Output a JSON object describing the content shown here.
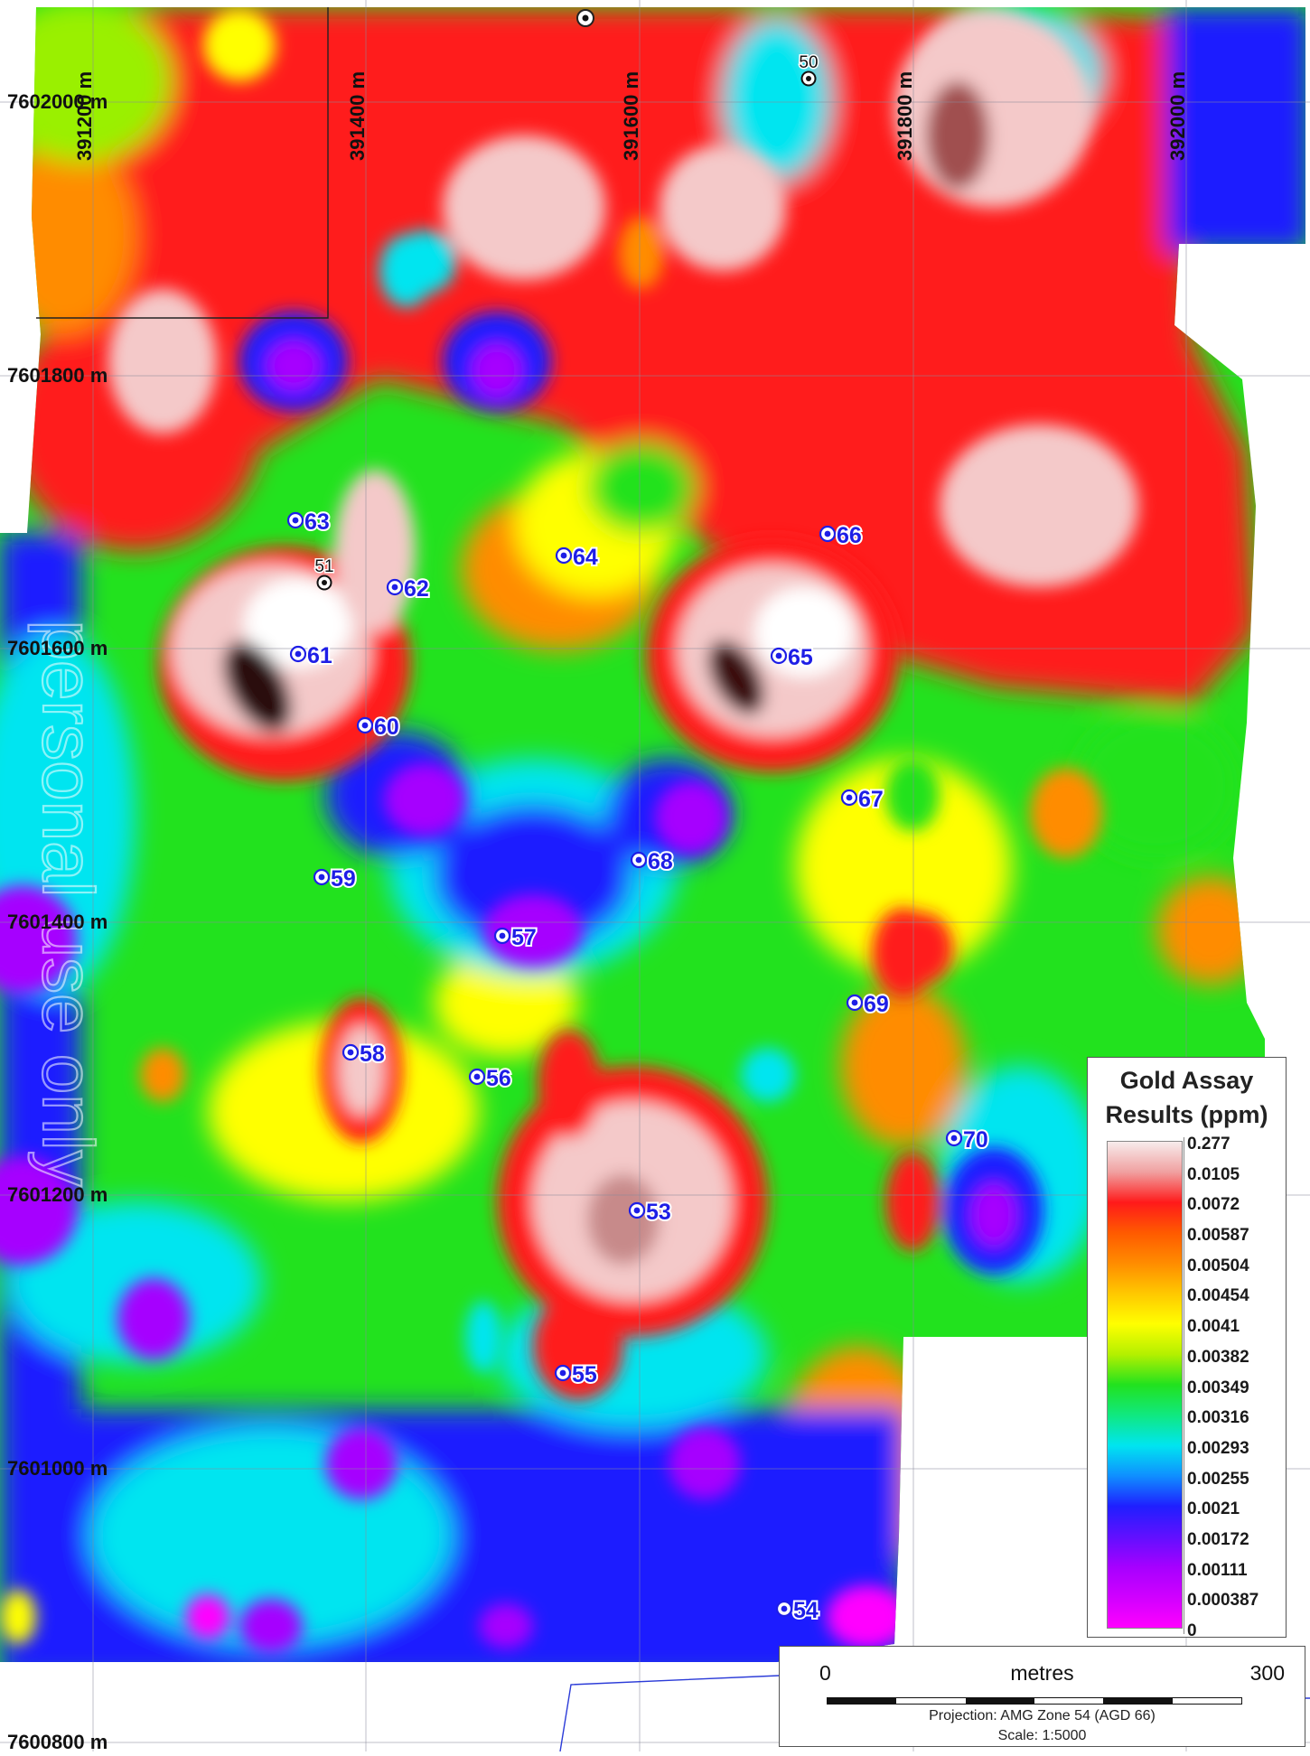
{
  "map": {
    "easting_labels": [
      "391200 m",
      "391400 m",
      "391600 m",
      "391800 m",
      "392000 m"
    ],
    "northing_labels": [
      "7602000 m",
      "7601800 m",
      "7601600 m",
      "7601400 m",
      "7601200 m",
      "7601000 m",
      "7600800 m"
    ],
    "samples_blue": [
      {
        "id": "53",
        "label": "53"
      },
      {
        "id": "54",
        "label": "54"
      },
      {
        "id": "55",
        "label": "55"
      },
      {
        "id": "56",
        "label": "56"
      },
      {
        "id": "57",
        "label": "57"
      },
      {
        "id": "58",
        "label": "58"
      },
      {
        "id": "59",
        "label": "59"
      },
      {
        "id": "60",
        "label": "60"
      },
      {
        "id": "61",
        "label": "61"
      },
      {
        "id": "62",
        "label": "62"
      },
      {
        "id": "63",
        "label": "63"
      },
      {
        "id": "64",
        "label": "64"
      },
      {
        "id": "65",
        "label": "65"
      },
      {
        "id": "66",
        "label": "66"
      },
      {
        "id": "67",
        "label": "67"
      },
      {
        "id": "68",
        "label": "68"
      },
      {
        "id": "69",
        "label": "69"
      },
      {
        "id": "70",
        "label": "70"
      }
    ],
    "samples_black": [
      {
        "id": "50",
        "label": "50"
      },
      {
        "id": "51",
        "label": "51"
      }
    ],
    "watermark": "personal use only",
    "palette": {
      "high": "#f7ecec",
      "red": "#ff1a1a",
      "orange": "#ff8c00",
      "yellow": "#ffff00",
      "green": "#22e21e",
      "cyan": "#00e5f0",
      "blue": "#1f1fff",
      "purple": "#a600ff",
      "magenta": "#ff00ff",
      "sample_blue": "#1e1ee6"
    }
  },
  "legend": {
    "title_line1": "Gold Assay",
    "title_line2": "Results (ppm)",
    "labels": [
      "0.277",
      "0.0105",
      "0.0072",
      "0.00587",
      "0.00504",
      "0.00454",
      "0.0041",
      "0.00382",
      "0.00349",
      "0.00316",
      "0.00293",
      "0.00255",
      "0.0021",
      "0.00172",
      "0.00111",
      "0.000387",
      "0"
    ]
  },
  "scalebar": {
    "left_value": "0",
    "unit": "metres",
    "right_value": "300",
    "projection": "Projection: AMG Zone 54 (AGD 66)",
    "scale": "Scale: 1:5000"
  }
}
